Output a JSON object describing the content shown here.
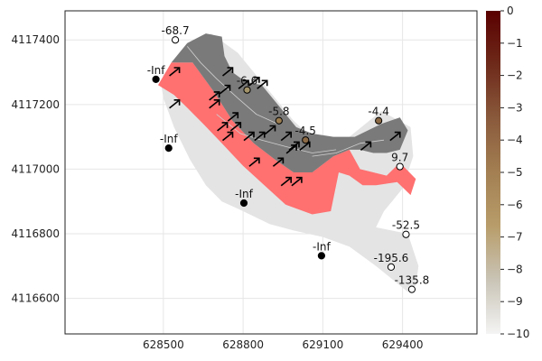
{
  "chart_data": {
    "type": "scatter",
    "title": "",
    "xlabel": "",
    "ylabel": "",
    "xlim": [
      628130,
      629680
    ],
    "ylim": [
      4116490,
      4117490
    ],
    "x_ticks": [
      {
        "value": 628500,
        "label": "628500"
      },
      {
        "value": 628800,
        "label": "628800"
      },
      {
        "value": 629100,
        "label": "629100"
      },
      {
        "value": 629400,
        "label": "629400"
      }
    ],
    "y_ticks": [
      {
        "value": 4116600,
        "label": "4116600"
      },
      {
        "value": 4116800,
        "label": "4116800"
      },
      {
        "value": 4117000,
        "label": "4117000"
      },
      {
        "value": 4117200,
        "label": "4117200"
      },
      {
        "value": 4117400,
        "label": "4117400"
      }
    ],
    "grid": true,
    "colorbar": {
      "min": -10,
      "max": 0,
      "ticks": [
        {
          "value": 0,
          "label": "0"
        },
        {
          "value": -1,
          "label": "−1"
        },
        {
          "value": -2,
          "label": "−2"
        },
        {
          "value": -3,
          "label": "−3"
        },
        {
          "value": -4,
          "label": "−4"
        },
        {
          "value": -5,
          "label": "−5"
        },
        {
          "value": -6,
          "label": "−6"
        },
        {
          "value": -7,
          "label": "−7"
        },
        {
          "value": -8,
          "label": "−8"
        },
        {
          "value": -9,
          "label": "−9"
        },
        {
          "value": -10,
          "label": "−10"
        }
      ],
      "colors": [
        "#f4f4f4",
        "#c9c4b6",
        "#b89d6a",
        "#a37f52",
        "#8a5a3c",
        "#6e2a1a",
        "#5a0000"
      ]
    },
    "colors": {
      "light_region": "#e4e4e4",
      "red_region": "#ff7070",
      "dark_region": "#7a7a7a",
      "inf_point": "#000000",
      "open_point": "#ffffff",
      "arrow": "#000000"
    },
    "light_region": [
      [
        628490,
        4117270
      ],
      [
        628540,
        4117320
      ],
      [
        628600,
        4117390
      ],
      [
        628680,
        4117420
      ],
      [
        628780,
        4117360
      ],
      [
        628880,
        4117260
      ],
      [
        628990,
        4117150
      ],
      [
        629080,
        4117080
      ],
      [
        629200,
        4117100
      ],
      [
        629320,
        4117180
      ],
      [
        629430,
        4117130
      ],
      [
        629440,
        4117040
      ],
      [
        629400,
        4116940
      ],
      [
        629360,
        4116900
      ],
      [
        629330,
        4116870
      ],
      [
        629300,
        4116820
      ],
      [
        629420,
        4116800
      ],
      [
        629460,
        4116700
      ],
      [
        629450,
        4116640
      ],
      [
        629420,
        4116620
      ],
      [
        629360,
        4116660
      ],
      [
        629300,
        4116700
      ],
      [
        629200,
        4116760
      ],
      [
        629100,
        4116790
      ],
      [
        628990,
        4116810
      ],
      [
        628900,
        4116830
      ],
      [
        628800,
        4116870
      ],
      [
        628720,
        4116900
      ],
      [
        628660,
        4116950
      ],
      [
        628600,
        4117030
      ],
      [
        628540,
        4117130
      ],
      [
        628500,
        4117220
      ]
    ],
    "red_region": [
      [
        628480,
        4117260
      ],
      [
        628530,
        4117330
      ],
      [
        628610,
        4117330
      ],
      [
        628690,
        4117240
      ],
      [
        628760,
        4117150
      ],
      [
        628840,
        4117080
      ],
      [
        628920,
        4117030
      ],
      [
        628990,
        4116990
      ],
      [
        629060,
        4116990
      ],
      [
        629140,
        4117040
      ],
      [
        629200,
        4117060
      ],
      [
        629240,
        4117000
      ],
      [
        629290,
        4116990
      ],
      [
        629340,
        4116980
      ],
      [
        629390,
        4117020
      ],
      [
        629450,
        4116970
      ],
      [
        629430,
        4116920
      ],
      [
        629380,
        4116960
      ],
      [
        629300,
        4116950
      ],
      [
        629250,
        4116950
      ],
      [
        629200,
        4116980
      ],
      [
        629160,
        4116990
      ],
      [
        629130,
        4116870
      ],
      [
        629060,
        4116860
      ],
      [
        628960,
        4116890
      ],
      [
        628880,
        4116950
      ],
      [
        628800,
        4117010
      ],
      [
        628720,
        4117080
      ],
      [
        628650,
        4117140
      ],
      [
        628590,
        4117190
      ],
      [
        628540,
        4117230
      ]
    ],
    "dark_region": [
      [
        628530,
        4117330
      ],
      [
        628590,
        4117390
      ],
      [
        628660,
        4117420
      ],
      [
        628720,
        4117410
      ],
      [
        628730,
        4117350
      ],
      [
        628760,
        4117300
      ],
      [
        628810,
        4117270
      ],
      [
        628870,
        4117260
      ],
      [
        628930,
        4117200
      ],
      [
        629000,
        4117130
      ],
      [
        629060,
        4117110
      ],
      [
        629140,
        4117100
      ],
      [
        629220,
        4117100
      ],
      [
        629320,
        4117140
      ],
      [
        629390,
        4117160
      ],
      [
        629420,
        4117120
      ],
      [
        629390,
        4117060
      ],
      [
        629340,
        4117050
      ],
      [
        629290,
        4117050
      ],
      [
        629240,
        4117060
      ],
      [
        629200,
        4117060
      ],
      [
        629140,
        4117040
      ],
      [
        629060,
        4116990
      ],
      [
        628990,
        4116990
      ],
      [
        628920,
        4117030
      ],
      [
        628840,
        4117080
      ],
      [
        628760,
        4117150
      ],
      [
        628690,
        4117240
      ],
      [
        628610,
        4117330
      ]
    ],
    "points": [
      {
        "x": 628545,
        "y": 4117400,
        "value": "-68.7",
        "style": "open"
      },
      {
        "x": 628472,
        "y": 4117278,
        "value": "-Inf",
        "style": "inf"
      },
      {
        "x": 628520,
        "y": 4117065,
        "value": "-Inf",
        "style": "inf"
      },
      {
        "x": 628803,
        "y": 4116895,
        "value": "-Inf",
        "style": "inf"
      },
      {
        "x": 629095,
        "y": 4116732,
        "value": "-Inf",
        "style": "inf"
      },
      {
        "x": 628815,
        "y": 4117245,
        "value": "-6.6",
        "style": "colored",
        "color": "#a3946a"
      },
      {
        "x": 628935,
        "y": 4117150,
        "value": "-5.8",
        "style": "colored",
        "color": "#9a7d50"
      },
      {
        "x": 629035,
        "y": 4117090,
        "value": "-4.5",
        "style": "colored",
        "color": "#8c6a45"
      },
      {
        "x": 629310,
        "y": 4117150,
        "value": "-4.4",
        "style": "colored",
        "color": "#8a6844"
      },
      {
        "x": 629390,
        "y": 4117008,
        "value": "9.7",
        "style": "open"
      },
      {
        "x": 629413,
        "y": 4116798,
        "value": "-52.5",
        "style": "open"
      },
      {
        "x": 629357,
        "y": 4116697,
        "value": "-195.6",
        "style": "open"
      },
      {
        "x": 629435,
        "y": 4116628,
        "value": "-135.8",
        "style": "open"
      }
    ],
    "arrows": [
      [
        628540,
        4117300
      ],
      [
        628740,
        4117300
      ],
      [
        628690,
        4117225
      ],
      [
        628730,
        4117245
      ],
      [
        628800,
        4117260
      ],
      [
        628840,
        4117270
      ],
      [
        628870,
        4117260
      ],
      [
        628540,
        4117200
      ],
      [
        628690,
        4117200
      ],
      [
        628760,
        4117160
      ],
      [
        628770,
        4117130
      ],
      [
        628720,
        4117130
      ],
      [
        628740,
        4117100
      ],
      [
        628820,
        4117100
      ],
      [
        628860,
        4117100
      ],
      [
        628900,
        4117120
      ],
      [
        628980,
        4117060
      ],
      [
        628960,
        4117100
      ],
      [
        628990,
        4117070
      ],
      [
        629030,
        4117070
      ],
      [
        628930,
        4117020
      ],
      [
        628840,
        4117020
      ],
      [
        629000,
        4116960
      ],
      [
        628960,
        4116960
      ],
      [
        629260,
        4117070
      ],
      [
        629370,
        4117100
      ]
    ],
    "contours": [
      [
        [
          628590,
          4117380
        ],
        [
          628640,
          4117330
        ],
        [
          628700,
          4117280
        ],
        [
          628780,
          4117220
        ],
        [
          628850,
          4117170
        ],
        [
          628930,
          4117140
        ]
      ],
      [
        [
          628700,
          4117170
        ],
        [
          628790,
          4117110
        ],
        [
          628870,
          4117090
        ],
        [
          628960,
          4117070
        ],
        [
          629060,
          4117050
        ],
        [
          629150,
          4117060
        ]
      ],
      [
        [
          629060,
          4117040
        ],
        [
          629150,
          4117050
        ],
        [
          629240,
          4117080
        ],
        [
          629330,
          4117090
        ]
      ]
    ]
  }
}
